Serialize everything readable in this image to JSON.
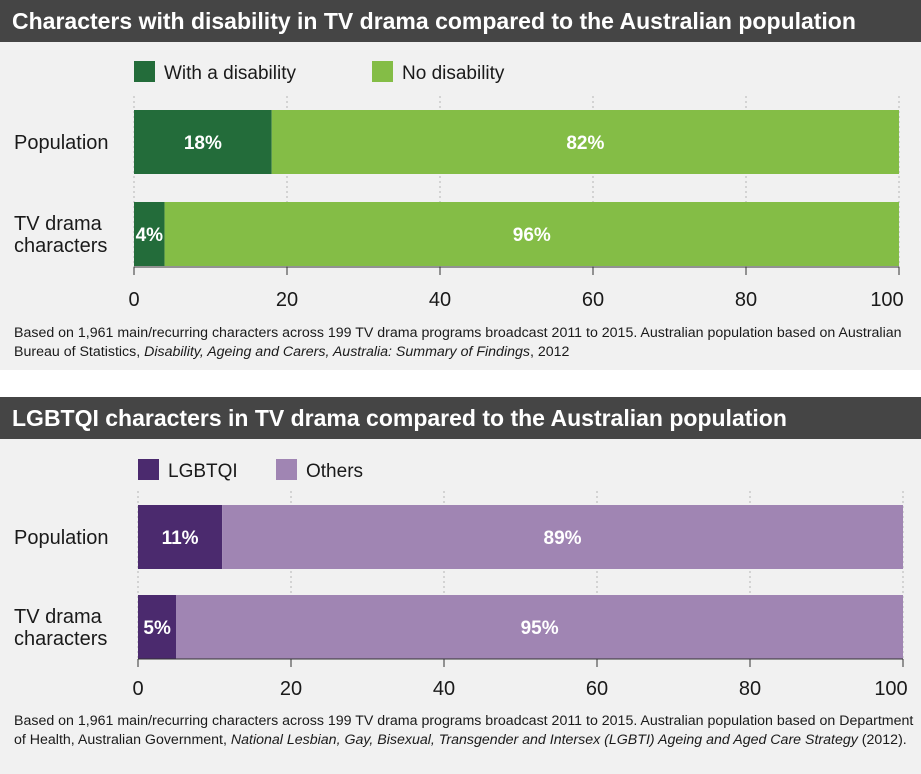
{
  "chart_data": [
    {
      "type": "bar",
      "orientation": "horizontal",
      "stacked": true,
      "title": "Characters with disability in TV drama compared to the Australian population",
      "categories": [
        "Population",
        "TV drama characters"
      ],
      "category_lines": [
        [
          "Population"
        ],
        [
          "TV drama",
          "characters"
        ]
      ],
      "series": [
        {
          "name": "With a disability",
          "values": [
            18,
            4
          ],
          "labels": [
            "18%",
            "4%"
          ],
          "color": "#236c3a"
        },
        {
          "name": "No disability",
          "values": [
            82,
            96
          ],
          "labels": [
            "82%",
            "96%"
          ],
          "color": "#84bd46"
        }
      ],
      "xlim": [
        0,
        100
      ],
      "xticks": [
        "0",
        "20",
        "40",
        "60",
        "80",
        "100"
      ],
      "grid": "vertical dashed",
      "legend": "top-left",
      "note": {
        "part1": "Based on 1,961 main/recurring characters across 199 TV drama programs broadcast 2011 to 2015. Australian population based on Australian Bureau of Statistics, ",
        "italic": "Disability, Ageing and Carers, Australia: Summary of Findings",
        "part2": ", 2012"
      }
    },
    {
      "type": "bar",
      "orientation": "horizontal",
      "stacked": true,
      "title": "LGBTQI characters in TV drama compared to the Australian population",
      "categories": [
        "Population",
        "TV drama characters"
      ],
      "category_lines": [
        [
          "Population"
        ],
        [
          "TV drama",
          "characters"
        ]
      ],
      "series": [
        {
          "name": "LGBTQI",
          "values": [
            11,
            5
          ],
          "labels": [
            "11%",
            "5%"
          ],
          "color": "#4b2a6e"
        },
        {
          "name": "Others",
          "values": [
            89,
            95
          ],
          "labels": [
            "89%",
            "95%"
          ],
          "color": "#a085b3"
        }
      ],
      "xlim": [
        0,
        100
      ],
      "xticks": [
        "0",
        "20",
        "40",
        "60",
        "80",
        "100"
      ],
      "grid": "vertical dashed",
      "legend": "top-left",
      "note": {
        "part1": "Based on 1,961 main/recurring characters across 199 TV drama programs broadcast 2011 to 2015. Australian population based on Department of Health, Australian Government, ",
        "italic": "National Lesbian, Gay, Bisexual, Transgender and Intersex (LGBTI) Ageing and Aged Care Strategy",
        "part2": " (2012)."
      }
    }
  ]
}
